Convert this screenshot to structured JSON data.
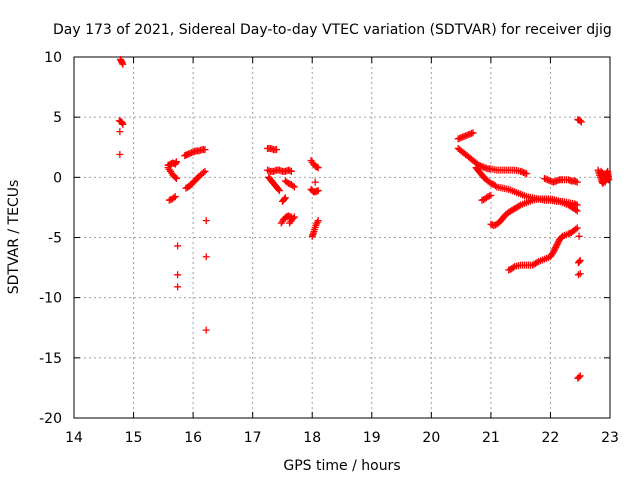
{
  "chart_data": {
    "type": "scatter",
    "title": "Day 173 of 2021, Sidereal Day-to-day VTEC variation (SDTVAR) for receiver djig",
    "xlabel": "GPS time / hours",
    "ylabel": "SDTVAR / TECUs",
    "xlim": [
      14,
      23
    ],
    "ylim": [
      -20,
      10
    ],
    "xticks": [
      14,
      15,
      16,
      17,
      18,
      19,
      20,
      21,
      22,
      23
    ],
    "yticks": [
      -20,
      -15,
      -10,
      -5,
      0,
      5,
      10
    ],
    "grid": true,
    "marker": "+",
    "color": "#ff0000",
    "series": [
      {
        "name": "SDTVAR",
        "segments": [
          [
            [
              14.78,
              9.8
            ],
            [
              14.8,
              9.6
            ],
            [
              14.82,
              9.4
            ]
          ],
          [
            [
              14.76,
              4.7
            ],
            [
              14.8,
              4.6
            ],
            [
              14.82,
              4.4
            ]
          ],
          [
            [
              14.77,
              3.8
            ]
          ],
          [
            [
              14.77,
              1.9
            ]
          ],
          [
            [
              15.6,
              -1.9
            ],
            [
              15.65,
              -1.8
            ],
            [
              15.7,
              -1.6
            ]
          ],
          [
            [
              15.58,
              1.0
            ],
            [
              15.62,
              1.1
            ],
            [
              15.66,
              1.2
            ],
            [
              15.7,
              1.1
            ],
            [
              15.72,
              1.3
            ]
          ],
          [
            [
              15.58,
              0.8
            ],
            [
              15.62,
              0.5
            ],
            [
              15.66,
              0.2
            ],
            [
              15.7,
              0.0
            ],
            [
              15.72,
              -0.1
            ]
          ],
          [
            [
              15.74,
              -5.7
            ]
          ],
          [
            [
              15.74,
              -8.1
            ]
          ],
          [
            [
              15.74,
              -9.1
            ]
          ],
          [
            [
              15.86,
              1.8
            ],
            [
              15.9,
              1.9
            ],
            [
              15.95,
              2.0
            ],
            [
              16.0,
              2.1
            ],
            [
              16.05,
              2.2
            ],
            [
              16.1,
              2.2
            ],
            [
              16.15,
              2.3
            ],
            [
              16.2,
              2.3
            ]
          ],
          [
            [
              15.88,
              -0.9
            ],
            [
              15.95,
              -0.7
            ],
            [
              16.0,
              -0.4
            ],
            [
              16.05,
              -0.2
            ],
            [
              16.1,
              0.1
            ],
            [
              16.15,
              0.3
            ],
            [
              16.2,
              0.5
            ]
          ],
          [
            [
              16.22,
              -3.6
            ]
          ],
          [
            [
              16.22,
              -6.6
            ]
          ],
          [
            [
              16.22,
              -12.7
            ]
          ],
          [
            [
              17.25,
              2.4
            ],
            [
              17.3,
              2.4
            ],
            [
              17.35,
              2.3
            ],
            [
              17.4,
              2.3
            ]
          ],
          [
            [
              17.25,
              0.6
            ],
            [
              17.3,
              0.5
            ],
            [
              17.35,
              0.5
            ],
            [
              17.4,
              0.6
            ],
            [
              17.45,
              0.6
            ],
            [
              17.5,
              0.5
            ],
            [
              17.55,
              0.5
            ],
            [
              17.6,
              0.6
            ],
            [
              17.65,
              0.5
            ]
          ],
          [
            [
              17.27,
              0.0
            ],
            [
              17.3,
              -0.2
            ],
            [
              17.35,
              -0.5
            ],
            [
              17.4,
              -0.8
            ],
            [
              17.45,
              -1.1
            ]
          ],
          [
            [
              17.55,
              -0.3
            ],
            [
              17.6,
              -0.5
            ],
            [
              17.65,
              -0.6
            ],
            [
              17.7,
              -0.8
            ]
          ],
          [
            [
              17.48,
              -3.8
            ],
            [
              17.52,
              -3.5
            ],
            [
              17.56,
              -3.3
            ],
            [
              17.6,
              -3.2
            ],
            [
              17.65,
              -3.3
            ]
          ],
          [
            [
              17.62,
              -3.8
            ],
            [
              17.66,
              -3.5
            ],
            [
              17.7,
              -3.3
            ]
          ],
          [
            [
              17.5,
              -2.0
            ],
            [
              17.55,
              -1.7
            ]
          ],
          [
            [
              17.98,
              1.4
            ],
            [
              18.02,
              1.1
            ],
            [
              18.06,
              0.9
            ],
            [
              18.1,
              0.8
            ]
          ],
          [
            [
              17.98,
              -1.0
            ],
            [
              18.02,
              -1.2
            ],
            [
              18.06,
              -1.2
            ],
            [
              18.1,
              -1.1
            ]
          ],
          [
            [
              18.0,
              -4.9
            ],
            [
              18.03,
              -4.5
            ],
            [
              18.06,
              -4.0
            ],
            [
              18.1,
              -3.6
            ]
          ],
          [
            [
              18.05,
              -0.4
            ]
          ],
          [
            [
              20.45,
              3.2
            ],
            [
              20.5,
              3.3
            ],
            [
              20.55,
              3.4
            ],
            [
              20.6,
              3.5
            ],
            [
              20.65,
              3.6
            ],
            [
              20.7,
              3.7
            ]
          ],
          [
            [
              20.45,
              2.4
            ],
            [
              20.5,
              2.2
            ],
            [
              20.55,
              2.0
            ],
            [
              20.6,
              1.8
            ],
            [
              20.65,
              1.6
            ],
            [
              20.7,
              1.4
            ],
            [
              20.75,
              1.2
            ],
            [
              20.8,
              1.0
            ],
            [
              20.85,
              0.9
            ],
            [
              20.9,
              0.8
            ],
            [
              20.95,
              0.7
            ],
            [
              21.0,
              0.7
            ],
            [
              21.1,
              0.6
            ],
            [
              21.2,
              0.6
            ],
            [
              21.3,
              0.6
            ],
            [
              21.4,
              0.6
            ],
            [
              21.5,
              0.5
            ],
            [
              21.55,
              0.4
            ],
            [
              21.6,
              0.3
            ]
          ],
          [
            [
              20.75,
              0.8
            ],
            [
              20.8,
              0.5
            ],
            [
              20.85,
              0.2
            ],
            [
              20.9,
              -0.1
            ],
            [
              20.95,
              -0.3
            ],
            [
              21.0,
              -0.5
            ],
            [
              21.05,
              -0.6
            ],
            [
              21.1,
              -0.8
            ],
            [
              21.2,
              -0.9
            ],
            [
              21.3,
              -1.0
            ],
            [
              21.4,
              -1.2
            ],
            [
              21.5,
              -1.4
            ],
            [
              21.6,
              -1.6
            ],
            [
              21.7,
              -1.7
            ],
            [
              21.8,
              -1.8
            ],
            [
              21.9,
              -1.9
            ],
            [
              22.0,
              -1.9
            ],
            [
              22.1,
              -2.0
            ],
            [
              22.2,
              -2.0
            ],
            [
              22.3,
              -2.1
            ],
            [
              22.4,
              -2.2
            ],
            [
              22.45,
              -2.3
            ]
          ],
          [
            [
              20.85,
              -1.9
            ],
            [
              20.9,
              -1.8
            ],
            [
              20.95,
              -1.6
            ],
            [
              21.0,
              -1.5
            ]
          ],
          [
            [
              21.0,
              -3.9
            ],
            [
              21.05,
              -4.0
            ],
            [
              21.1,
              -3.9
            ],
            [
              21.15,
              -3.7
            ],
            [
              21.2,
              -3.4
            ],
            [
              21.25,
              -3.1
            ],
            [
              21.3,
              -2.9
            ],
            [
              21.4,
              -2.6
            ],
            [
              21.5,
              -2.3
            ],
            [
              21.6,
              -2.1
            ],
            [
              21.7,
              -1.9
            ],
            [
              21.8,
              -1.8
            ],
            [
              21.9,
              -1.8
            ],
            [
              22.0,
              -1.8
            ],
            [
              22.1,
              -1.9
            ],
            [
              22.2,
              -2.1
            ],
            [
              22.3,
              -2.3
            ],
            [
              22.4,
              -2.6
            ],
            [
              22.45,
              -2.8
            ]
          ],
          [
            [
              21.3,
              -7.7
            ],
            [
              21.35,
              -7.6
            ],
            [
              21.4,
              -7.4
            ],
            [
              21.5,
              -7.3
            ],
            [
              21.6,
              -7.3
            ],
            [
              21.7,
              -7.3
            ],
            [
              21.8,
              -7.0
            ],
            [
              21.9,
              -6.8
            ],
            [
              22.0,
              -6.6
            ],
            [
              22.05,
              -6.2
            ],
            [
              22.1,
              -5.7
            ],
            [
              22.15,
              -5.2
            ],
            [
              22.2,
              -4.9
            ],
            [
              22.3,
              -4.7
            ],
            [
              22.35,
              -4.6
            ],
            [
              22.4,
              -4.4
            ],
            [
              22.45,
              -4.2
            ]
          ],
          [
            [
              21.9,
              -0.1
            ],
            [
              21.95,
              -0.2
            ],
            [
              22.0,
              -0.3
            ],
            [
              22.05,
              -0.4
            ],
            [
              22.1,
              -0.3
            ],
            [
              22.15,
              -0.2
            ],
            [
              22.2,
              -0.2
            ],
            [
              22.3,
              -0.2
            ],
            [
              22.35,
              -0.3
            ],
            [
              22.4,
              -0.3
            ],
            [
              22.45,
              -0.4
            ]
          ],
          [
            [
              22.46,
              4.8
            ],
            [
              22.5,
              4.7
            ],
            [
              22.52,
              4.6
            ]
          ],
          [
            [
              22.48,
              -4.9
            ]
          ],
          [
            [
              22.47,
              -7.1
            ],
            [
              22.5,
              -6.9
            ]
          ],
          [
            [
              22.47,
              -8.1
            ],
            [
              22.5,
              -8.0
            ]
          ],
          [
            [
              22.46,
              -16.7
            ],
            [
              22.5,
              -16.5
            ]
          ],
          [
            [
              22.8,
              0.6
            ],
            [
              22.82,
              0.3
            ],
            [
              22.84,
              0.0
            ],
            [
              22.86,
              -0.3
            ],
            [
              22.88,
              -0.5
            ],
            [
              22.9,
              -0.3
            ],
            [
              22.92,
              0.0
            ],
            [
              22.94,
              0.3
            ],
            [
              22.96,
              0.5
            ],
            [
              22.97,
              0.2
            ],
            [
              22.98,
              -0.2
            ],
            [
              22.85,
              0.5
            ],
            [
              22.92,
              -0.4
            ]
          ]
        ]
      }
    ]
  }
}
